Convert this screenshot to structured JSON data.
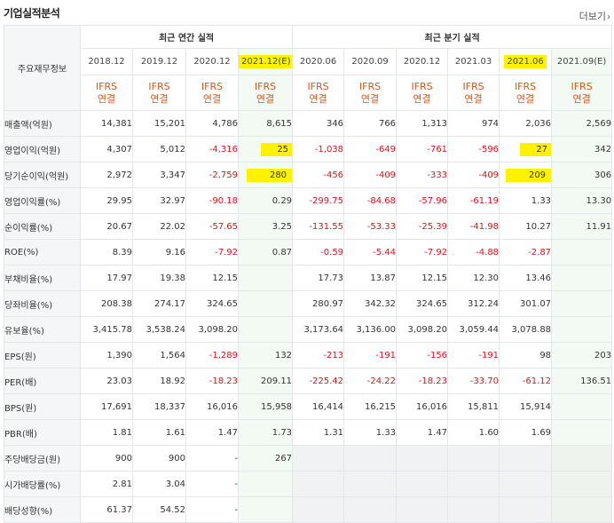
{
  "title": "기업실적분석",
  "more": "더보기",
  "header": {
    "corner": "주요재무정보",
    "annual": "최근 연간 실적",
    "quarterly": "최근 분기 실적",
    "periods": [
      "2018.12",
      "2019.12",
      "2020.12",
      "2021.12(E)",
      "2020.06",
      "2020.09",
      "2020.12",
      "2021.03",
      "2021.06",
      "2021.09(E)"
    ],
    "accounting_line1": "IFRS",
    "accounting_line2": "연결"
  },
  "rows": [
    {
      "label": "매출액(억원)",
      "values": [
        "14,381",
        "15,201",
        "4,786",
        "8,615",
        "346",
        "766",
        "1,313",
        "974",
        "2,036",
        "2,569"
      ]
    },
    {
      "label": "영업이익(억원)",
      "values": [
        "4,307",
        "5,012",
        "-4,316",
        "25",
        "-1,038",
        "-649",
        "-761",
        "-596",
        "27",
        "342"
      ]
    },
    {
      "label": "당기순이익(억원)",
      "values": [
        "2,972",
        "3,347",
        "-2,759",
        "280",
        "-456",
        "-409",
        "-333",
        "-409",
        "209",
        "306"
      ]
    },
    {
      "label": "영업이익률(%)",
      "values": [
        "29.95",
        "32.97",
        "-90.18",
        "0.29",
        "-299.75",
        "-84.68",
        "-57.96",
        "-61.19",
        "1.33",
        "13.30"
      ]
    },
    {
      "label": "순이익률(%)",
      "values": [
        "20.67",
        "22.02",
        "-57.65",
        "3.25",
        "-131.55",
        "-53.33",
        "-25.39",
        "-41.98",
        "10.27",
        "11.91"
      ]
    },
    {
      "label": "ROE(%)",
      "values": [
        "8.39",
        "9.16",
        "-7.92",
        "0.87",
        "-0.59",
        "-5.44",
        "-7.92",
        "-4.88",
        "-2.87",
        ""
      ]
    },
    {
      "label": "부채비율(%)",
      "values": [
        "17.97",
        "19.38",
        "12.15",
        "",
        "17.73",
        "13.87",
        "12.15",
        "12.30",
        "13.46",
        ""
      ]
    },
    {
      "label": "당좌비율(%)",
      "values": [
        "208.38",
        "274.17",
        "324.65",
        "",
        "280.97",
        "342.32",
        "324.65",
        "312.24",
        "301.07",
        ""
      ]
    },
    {
      "label": "유보율(%)",
      "values": [
        "3,415.78",
        "3,538.24",
        "3,098.20",
        "",
        "3,173.64",
        "3,136.00",
        "3,098.20",
        "3,059.44",
        "3,078.88",
        ""
      ]
    },
    {
      "label": "EPS(원)",
      "values": [
        "1,390",
        "1,564",
        "-1,289",
        "132",
        "-213",
        "-191",
        "-156",
        "-191",
        "98",
        "203"
      ]
    },
    {
      "label": "PER(배)",
      "values": [
        "23.03",
        "18.92",
        "-18.23",
        "209.11",
        "-225.42",
        "-24.22",
        "-18.23",
        "-33.70",
        "-61.12",
        "136.51"
      ]
    },
    {
      "label": "BPS(원)",
      "values": [
        "17,691",
        "18,337",
        "16,016",
        "15,958",
        "16,414",
        "16,215",
        "16,016",
        "15,811",
        "15,914",
        ""
      ]
    },
    {
      "label": "PBR(배)",
      "values": [
        "1.81",
        "1.61",
        "1.47",
        "1.73",
        "1.31",
        "1.33",
        "1.47",
        "1.60",
        "1.69",
        ""
      ]
    },
    {
      "label": "주당배당금(원)",
      "values": [
        "900",
        "900",
        "-",
        "267",
        "",
        "",
        "",
        "",
        "",
        ""
      ]
    },
    {
      "label": "시가배당률(%)",
      "values": [
        "2.81",
        "3.04",
        "-",
        "",
        "",
        "",
        "",
        "",
        "",
        ""
      ]
    },
    {
      "label": "배당성향(%)",
      "values": [
        "61.37",
        "54.52",
        "-",
        "",
        "",
        "",
        "",
        "",
        "",
        ""
      ]
    }
  ]
}
